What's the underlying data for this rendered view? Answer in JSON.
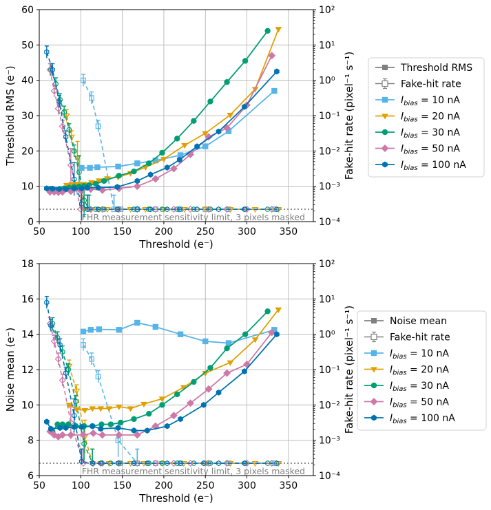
{
  "colors": {
    "i10": "#56b4e9",
    "i20": "#e0a000",
    "i30": "#009e73",
    "i50": "#cc79a7",
    "i100": "#0072b2",
    "grid": "#b0b0b0",
    "limit": "#808080",
    "legend_gray": "#808080"
  },
  "chart_data": [
    {
      "type": "line",
      "name": "threshold-rms-panel",
      "xlabel": "Threshold (e⁻)",
      "ylabel": "Threshold RMS (e⁻)",
      "y2label": "Fake-hit rate (pixel⁻¹ s⁻¹)",
      "xlim": [
        50,
        380
      ],
      "ylim": [
        0,
        60
      ],
      "y2lim_log10": [
        -4,
        2
      ],
      "xticks": [
        50,
        100,
        150,
        200,
        250,
        300,
        350
      ],
      "yticks": [
        0,
        10,
        20,
        30,
        40,
        50,
        60
      ],
      "y2ticks": [
        {
          "exp": 2,
          "label": "10²"
        },
        {
          "exp": 1,
          "label": "10¹"
        },
        {
          "exp": 0,
          "label": "10⁰"
        },
        {
          "exp": -1,
          "label": "10⁻¹"
        },
        {
          "exp": -2,
          "label": "10⁻²"
        },
        {
          "exp": -3,
          "label": "10⁻³"
        },
        {
          "exp": -4,
          "label": "10⁻⁴"
        }
      ],
      "grid": true,
      "limit_line_log10": -3.65,
      "limit_label": "FHR measurement sensitivity limit, 3 pixels masked",
      "legend": {
        "placement": "right",
        "entries": [
          {
            "label": "Threshold RMS",
            "kind": "rms"
          },
          {
            "label": "Fake-hit rate",
            "kind": "fhr"
          },
          {
            "label": "I",
            "sub": "bias",
            "rest": " = 10 nA",
            "key": "i10",
            "marker": "square"
          },
          {
            "label": "I",
            "sub": "bias",
            "rest": " = 20 nA",
            "key": "i20",
            "marker": "tri"
          },
          {
            "label": "I",
            "sub": "bias",
            "rest": " = 30 nA",
            "key": "i30",
            "marker": "circle"
          },
          {
            "label": "I",
            "sub": "bias",
            "rest": " = 50 nA",
            "key": "i50",
            "marker": "diamond"
          },
          {
            "label": "I",
            "sub": "bias",
            "rest": " = 100 nA",
            "key": "i100",
            "marker": "hexagon"
          }
        ]
      },
      "series": [
        {
          "name": "I_bias = 10 nA",
          "key": "i10",
          "marker": "square",
          "x": [
            101,
            111,
            120,
            145,
            168,
            190,
            220,
            250,
            278,
            333
          ],
          "y": [
            15.2,
            15.2,
            15.4,
            15.6,
            16.5,
            17.3,
            18.8,
            21.3,
            25.6,
            37.0
          ],
          "fhr_x": [
            103,
            113,
            121,
            140,
            148,
            168,
            190,
            220,
            250,
            278,
            333
          ],
          "fhr_log10": [
            0.0,
            -0.5,
            -1.3,
            -3.65,
            -3.65,
            -3.65,
            -3.65,
            -3.65,
            -3.65,
            -3.65,
            -3.65
          ]
        },
        {
          "name": "I_bias = 20 nA",
          "key": "i20",
          "marker": "tri",
          "x": [
            83,
            89,
            96,
            104,
            113,
            122,
            132,
            145,
            160,
            178,
            200,
            225,
            250,
            280,
            310,
            338
          ],
          "y": [
            10.3,
            10.6,
            10.6,
            10.6,
            11.1,
            11.6,
            12.2,
            12.6,
            13.7,
            15.4,
            17.7,
            21.6,
            25.0,
            30.2,
            37.5,
            54.5
          ],
          "fhr_x": [
            83,
            89,
            96,
            104,
            113,
            122,
            132,
            145,
            160,
            178,
            200,
            225,
            250,
            280,
            310,
            338
          ],
          "fhr_log10": [
            -1.0,
            -1.6,
            -2.2,
            -3.65,
            -3.65,
            -3.65,
            -3.65,
            -3.65,
            -3.65,
            -3.65,
            -3.65,
            -3.65,
            -3.65,
            -3.65,
            -3.65,
            -3.65
          ]
        },
        {
          "name": "I_bias = 30 nA",
          "key": "i30",
          "marker": "circle",
          "x": [
            64,
            70,
            75,
            80,
            86,
            92,
            98,
            104,
            110,
            118,
            128,
            146,
            164,
            182,
            198,
            216,
            236,
            256,
            276,
            298,
            325
          ],
          "y": [
            9.3,
            9.0,
            9.2,
            9.4,
            9.6,
            9.8,
            9.9,
            10.1,
            10.3,
            10.7,
            11.5,
            13.0,
            14.2,
            16.5,
            19.5,
            23.5,
            28.5,
            34.0,
            39.5,
            45.5,
            54.0
          ],
          "fhr_x": [
            64,
            70,
            75,
            80,
            86,
            92,
            98,
            104,
            110,
            118,
            128,
            146,
            164,
            182,
            198,
            216,
            236,
            256,
            276,
            298,
            325
          ],
          "fhr_log10": [
            0.3,
            -0.1,
            -0.55,
            -0.9,
            -1.4,
            -2.0,
            -2.6,
            -3.4,
            -3.65,
            -3.65,
            -3.65,
            -3.65,
            -3.65,
            -3.65,
            -3.65,
            -3.65,
            -3.65,
            -3.65,
            -3.65,
            -3.65,
            -3.65
          ]
        },
        {
          "name": "I_bias = 50 nA",
          "key": "i50",
          "marker": "diamond",
          "x": [
            63,
            68,
            73,
            78,
            88,
            100,
            112,
            126,
            146,
            168,
            190,
            212,
            232,
            254,
            276,
            300,
            330
          ],
          "y": [
            8.4,
            8.4,
            8.3,
            8.4,
            8.6,
            8.8,
            9.2,
            8.9,
            9.4,
            10.0,
            12.1,
            15.0,
            19.0,
            24.0,
            26.5,
            33.0,
            47.0
          ],
          "fhr_x": [
            63,
            68,
            73,
            78,
            88,
            100,
            112,
            126,
            146,
            168,
            190,
            212,
            232,
            254,
            276,
            300,
            330
          ],
          "fhr_log10": [
            0.3,
            -0.3,
            -0.8,
            -1.3,
            -2.4,
            -3.65,
            -3.65,
            -3.65,
            -3.65,
            -3.65,
            -3.65,
            -3.65,
            -3.65,
            -3.65,
            -3.65,
            -3.65,
            -3.65
          ]
        },
        {
          "name": "I_bias = 100 nA",
          "key": "i100",
          "marker": "hexagon",
          "x": [
            59,
            66,
            74,
            82,
            92,
            101,
            108,
            121,
            144,
            168,
            184,
            204,
            219,
            240,
            266,
            297,
            336
          ],
          "y": [
            9.4,
            9.3,
            9.2,
            9.2,
            9.4,
            9.4,
            9.6,
            9.6,
            9.8,
            11.5,
            13.3,
            15.3,
            17.5,
            21.3,
            25.5,
            32.5,
            42.5
          ],
          "fhr_x": [
            59,
            66,
            74,
            82,
            92,
            101,
            108,
            121,
            144,
            168,
            184,
            204,
            219,
            240,
            266,
            297,
            336
          ],
          "fhr_log10": [
            0.8,
            0.3,
            -0.6,
            -1.6,
            -2.8,
            -3.5,
            -3.65,
            -3.65,
            -3.65,
            -3.65,
            -3.65,
            -3.65,
            -3.65,
            -3.65,
            -3.65,
            -3.65,
            -3.65
          ]
        }
      ]
    },
    {
      "type": "line",
      "name": "noise-mean-panel",
      "xlabel": "Threshold (e⁻)",
      "ylabel": "Noise mean (e⁻)",
      "y2label": "Fake-hit rate (pixel⁻¹ s⁻¹)",
      "xlim": [
        50,
        380
      ],
      "ylim": [
        6,
        18
      ],
      "y2lim_log10": [
        -4,
        2
      ],
      "xticks": [
        50,
        100,
        150,
        200,
        250,
        300,
        350
      ],
      "yticks": [
        6,
        8,
        10,
        12,
        14,
        16,
        18
      ],
      "y2ticks": [
        {
          "exp": 2,
          "label": "10²"
        },
        {
          "exp": 1,
          "label": "10¹"
        },
        {
          "exp": 0,
          "label": "10⁰"
        },
        {
          "exp": -1,
          "label": "10⁻¹"
        },
        {
          "exp": -2,
          "label": "10⁻²"
        },
        {
          "exp": -3,
          "label": "10⁻³"
        },
        {
          "exp": -4,
          "label": "10⁻⁴"
        }
      ],
      "grid": true,
      "limit_line_log10": -3.65,
      "limit_label": "FHR measurement sensitivity limit, 3 pixels masked",
      "legend": {
        "placement": "right",
        "entries": [
          {
            "label": "Noise mean",
            "kind": "rms"
          },
          {
            "label": "Fake-hit rate",
            "kind": "fhr"
          },
          {
            "label": "I",
            "sub": "bias",
            "rest": " = 10 nA",
            "key": "i10",
            "marker": "square"
          },
          {
            "label": "I",
            "sub": "bias",
            "rest": " = 20 nA",
            "key": "i20",
            "marker": "tri"
          },
          {
            "label": "I",
            "sub": "bias",
            "rest": " = 30 nA",
            "key": "i30",
            "marker": "circle"
          },
          {
            "label": "I",
            "sub": "bias",
            "rest": " = 50 nA",
            "key": "i50",
            "marker": "diamond"
          },
          {
            "label": "I",
            "sub": "bias",
            "rest": " = 100 nA",
            "key": "i100",
            "marker": "hexagon"
          }
        ]
      },
      "series": [
        {
          "name": "I_bias = 10 nA",
          "key": "i10",
          "marker": "square",
          "x": [
            103,
            112,
            122,
            146,
            168,
            190,
            220,
            250,
            278,
            333
          ],
          "y": [
            14.15,
            14.25,
            14.28,
            14.25,
            14.65,
            14.42,
            14.0,
            13.6,
            13.5,
            14.25
          ],
          "fhr_x": [
            103,
            113,
            121,
            145,
            168,
            190,
            220,
            250,
            278,
            333
          ],
          "fhr_log10": [
            -0.3,
            -0.7,
            -1.2,
            -3.0,
            -3.65,
            -3.65,
            -3.65,
            -3.65,
            -3.65,
            -3.65
          ]
        },
        {
          "name": "I_bias = 20 nA",
          "key": "i20",
          "marker": "tri",
          "x": [
            86,
            95,
            105,
            114,
            124,
            134,
            146,
            160,
            176,
            198,
            224,
            250,
            280,
            310,
            338
          ],
          "y": [
            10.0,
            9.75,
            9.7,
            9.8,
            9.8,
            9.8,
            9.9,
            9.8,
            10.05,
            10.35,
            11.0,
            11.8,
            12.4,
            13.7,
            15.4
          ],
          "fhr_x": [
            86,
            95,
            105,
            114,
            124,
            134,
            146,
            160,
            176,
            198,
            224,
            250,
            280,
            310,
            338
          ],
          "fhr_log10": [
            -0.9,
            -1.6,
            -2.9,
            -3.65,
            -3.65,
            -3.65,
            -3.65,
            -3.65,
            -3.65,
            -3.65,
            -3.65,
            -3.65,
            -3.65,
            -3.65,
            -3.65
          ]
        },
        {
          "name": "I_bias = 30 nA",
          "key": "i30",
          "marker": "circle",
          "x": [
            66,
            72,
            78,
            85,
            94,
            104,
            114,
            125,
            136,
            148,
            164,
            182,
            198,
            216,
            236,
            256,
            276,
            298,
            325
          ],
          "y": [
            8.5,
            8.9,
            8.9,
            8.9,
            8.8,
            8.8,
            8.8,
            8.9,
            8.9,
            9.0,
            9.2,
            9.5,
            10.0,
            10.6,
            11.3,
            12.1,
            13.2,
            14.0,
            15.3
          ],
          "fhr_x": [
            66,
            72,
            78,
            85,
            94,
            104,
            114,
            125,
            136,
            148,
            164,
            182,
            198,
            216,
            236,
            256,
            276,
            298,
            325
          ],
          "fhr_log10": [
            0.3,
            -0.1,
            -0.5,
            -1.0,
            -1.9,
            -3.1,
            -3.65,
            -3.65,
            -3.65,
            -3.65,
            -3.65,
            -3.65,
            -3.65,
            -3.65,
            -3.65,
            -3.65,
            -3.65,
            -3.65,
            -3.65
          ]
        },
        {
          "name": "I_bias = 50 nA",
          "key": "i50",
          "marker": "diamond",
          "x": [
            63,
            68,
            73,
            78,
            88,
            103,
            115,
            126,
            146,
            168,
            190,
            212,
            232,
            254,
            276,
            300,
            330
          ],
          "y": [
            8.5,
            8.3,
            8.2,
            8.3,
            8.3,
            8.3,
            8.4,
            8.3,
            8.3,
            8.3,
            8.8,
            9.4,
            10.1,
            10.9,
            11.8,
            12.3,
            14.1
          ],
          "fhr_x": [
            63,
            68,
            73,
            78,
            88,
            103,
            115,
            126,
            146,
            168,
            190,
            212,
            232,
            254,
            276,
            300,
            330
          ],
          "fhr_log10": [
            0.3,
            -0.2,
            -0.7,
            -1.3,
            -2.5,
            -3.65,
            -3.65,
            -3.65,
            -3.65,
            -3.65,
            -3.65,
            -3.65,
            -3.65,
            -3.65,
            -3.65,
            -3.65,
            -3.65
          ]
        },
        {
          "name": "I_bias = 100 nA",
          "key": "i100",
          "marker": "hexagon",
          "x": [
            59,
            64,
            75,
            82,
            92,
            101,
            114,
            124,
            145,
            164,
            180,
            204,
            220,
            248,
            266,
            297,
            336
          ],
          "y": [
            9.05,
            8.65,
            8.7,
            8.7,
            8.75,
            8.75,
            8.8,
            8.65,
            8.7,
            8.55,
            8.55,
            8.8,
            9.2,
            10.0,
            10.7,
            11.9,
            14.0
          ],
          "fhr_x": [
            59,
            64,
            75,
            82,
            92,
            101,
            114,
            124,
            145,
            164,
            180,
            204,
            220,
            248,
            266,
            297,
            336
          ],
          "fhr_log10": [
            0.9,
            0.25,
            -0.3,
            -1.1,
            -2.3,
            -3.6,
            -3.65,
            -3.65,
            -3.65,
            -3.65,
            -3.65,
            -3.65,
            -3.65,
            -3.65,
            -3.65,
            -3.65,
            -3.65
          ]
        }
      ]
    }
  ]
}
